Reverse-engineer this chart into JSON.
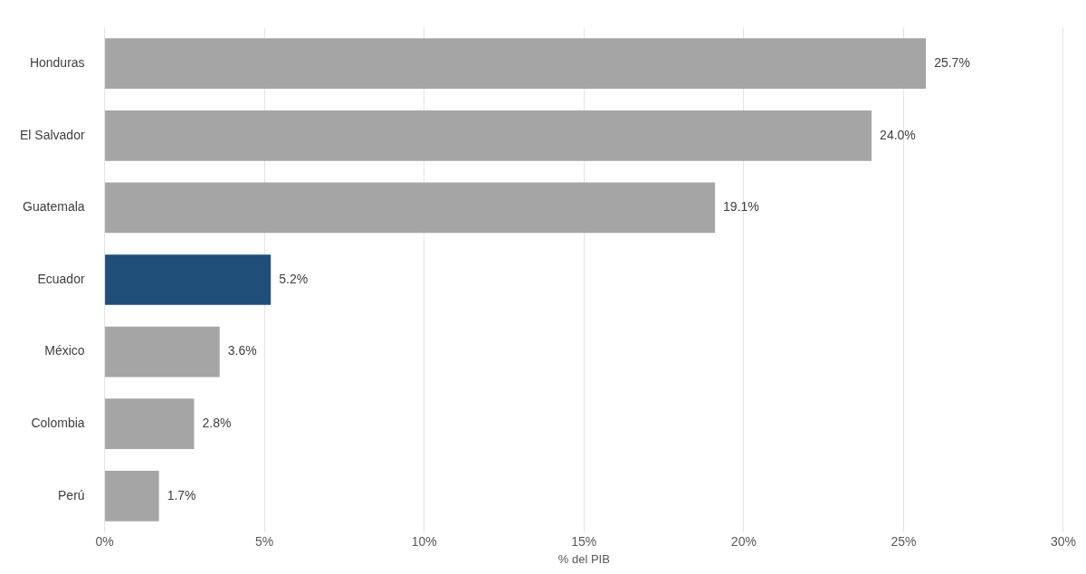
{
  "chart_data": {
    "type": "bar",
    "orientation": "horizontal",
    "xlabel": "% del PIB",
    "categories": [
      "Honduras",
      "El Salvador",
      "Guatemala",
      "Ecuador",
      "México",
      "Colombia",
      "Perú"
    ],
    "values": [
      25.7,
      24.0,
      19.1,
      5.2,
      3.6,
      2.8,
      1.7
    ],
    "colors": [
      "#a5a5a5",
      "#a5a5a5",
      "#a5a5a5",
      "#1f4e79",
      "#a5a5a5",
      "#a5a5a5",
      "#a5a5a5"
    ],
    "value_labels": [
      "25.7%",
      "24.0%",
      "19.1%",
      "5.2%",
      "3.6%",
      "2.8%",
      "1.7%"
    ],
    "xlim": [
      0,
      30
    ],
    "xticks": [
      {
        "value": 0,
        "label": "0%"
      },
      {
        "value": 5,
        "label": "5%"
      },
      {
        "value": 10,
        "label": "10%"
      },
      {
        "value": 15,
        "label": "15%"
      },
      {
        "value": 20,
        "label": "20%"
      },
      {
        "value": 25,
        "label": "25%"
      },
      {
        "value": 30,
        "label": "30%"
      }
    ],
    "grid": "x"
  }
}
